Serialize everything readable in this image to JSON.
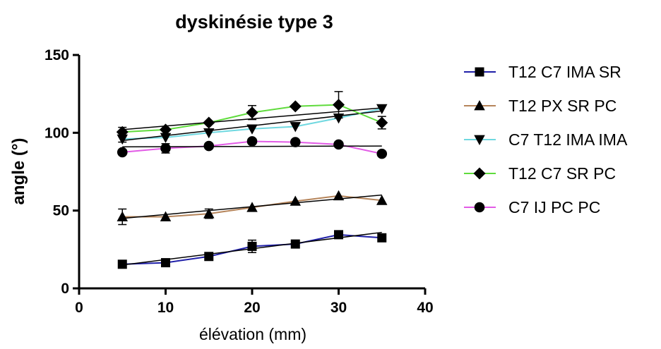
{
  "chart_data": {
    "type": "line",
    "title": "dyskinésie type 3",
    "xlabel": "élévation (mm)",
    "ylabel": "angle (°)",
    "xlim": [
      0,
      40
    ],
    "ylim": [
      0,
      150
    ],
    "xticks": [
      0,
      10,
      20,
      30,
      40
    ],
    "xtick_labels": [
      "0",
      "10",
      "20",
      "30",
      "40"
    ],
    "yticks": [
      0,
      50,
      100,
      150
    ],
    "ytick_labels": [
      "0",
      "50",
      "100",
      "150"
    ],
    "grid": false,
    "legend_position": "right",
    "x": [
      5,
      10,
      15,
      20,
      25,
      30,
      35
    ],
    "series": [
      {
        "name": "T12 C7 IMA SR",
        "marker": "square",
        "color": "#1f1fa8",
        "values": [
          15.5,
          16.5,
          20.5,
          27,
          28.5,
          34.5,
          32.5
        ],
        "errors": [
          1.5,
          1.5,
          2,
          4,
          1,
          1,
          1
        ],
        "fit": [
          15,
          36
        ]
      },
      {
        "name": "T12 PX SR PC",
        "marker": "triangle-up",
        "color": "#b5845a",
        "values": [
          46,
          46,
          48,
          52,
          56,
          59.5,
          56.5
        ],
        "errors": [
          5,
          1,
          3,
          1,
          1,
          1,
          1
        ],
        "fit": [
          45,
          60
        ]
      },
      {
        "name": "C7 T12 IMA IMA",
        "marker": "triangle-down",
        "color": "#6fd8e0",
        "values": [
          96,
          97,
          100,
          102.5,
          104,
          109.5,
          115.5
        ],
        "errors": [
          2,
          1,
          1,
          1,
          1,
          1,
          1
        ],
        "fit": [
          95,
          114
        ]
      },
      {
        "name": "T12 C7 SR PC",
        "marker": "diamond",
        "color": "#5fdb3c",
        "values": [
          100.5,
          102,
          106.5,
          113,
          117,
          118,
          106.5
        ],
        "errors": [
          3,
          1,
          1,
          4.5,
          1,
          8.5,
          4
        ],
        "fit": [
          102,
          116
        ]
      },
      {
        "name": "C7 IJ PC PC",
        "marker": "circle",
        "color": "#e25be6",
        "values": [
          87.5,
          90,
          91.5,
          94.5,
          94,
          92.5,
          86.5
        ],
        "errors": [
          1,
          3,
          1,
          1,
          1,
          1,
          1
        ],
        "fit": [
          91,
          91.5
        ]
      }
    ]
  }
}
